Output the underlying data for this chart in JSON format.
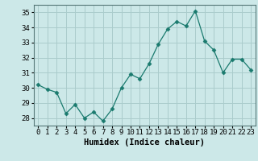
{
  "x": [
    0,
    1,
    2,
    3,
    4,
    5,
    6,
    7,
    8,
    9,
    10,
    11,
    12,
    13,
    14,
    15,
    16,
    17,
    18,
    19,
    20,
    21,
    22,
    23
  ],
  "y": [
    30.2,
    29.9,
    29.7,
    28.3,
    28.9,
    28.0,
    28.4,
    27.8,
    28.6,
    30.0,
    30.9,
    30.6,
    31.6,
    32.9,
    33.9,
    34.4,
    34.1,
    35.1,
    33.1,
    32.5,
    31.0,
    31.9,
    31.9,
    31.2
  ],
  "line_color": "#1a7a6e",
  "marker": "D",
  "marker_size": 2.5,
  "bg_color": "#cce8e8",
  "grid_color": "#aacccc",
  "xlabel": "Humidex (Indice chaleur)",
  "ylabel": "",
  "xlim": [
    -0.5,
    23.5
  ],
  "ylim": [
    27.5,
    35.5
  ],
  "yticks": [
    28,
    29,
    30,
    31,
    32,
    33,
    34,
    35
  ],
  "xtick_labels": [
    "0",
    "1",
    "2",
    "3",
    "4",
    "5",
    "6",
    "7",
    "8",
    "9",
    "10",
    "11",
    "12",
    "13",
    "14",
    "15",
    "16",
    "17",
    "18",
    "19",
    "20",
    "21",
    "22",
    "23"
  ],
  "xlabel_fontsize": 7.5,
  "tick_fontsize": 6.5
}
